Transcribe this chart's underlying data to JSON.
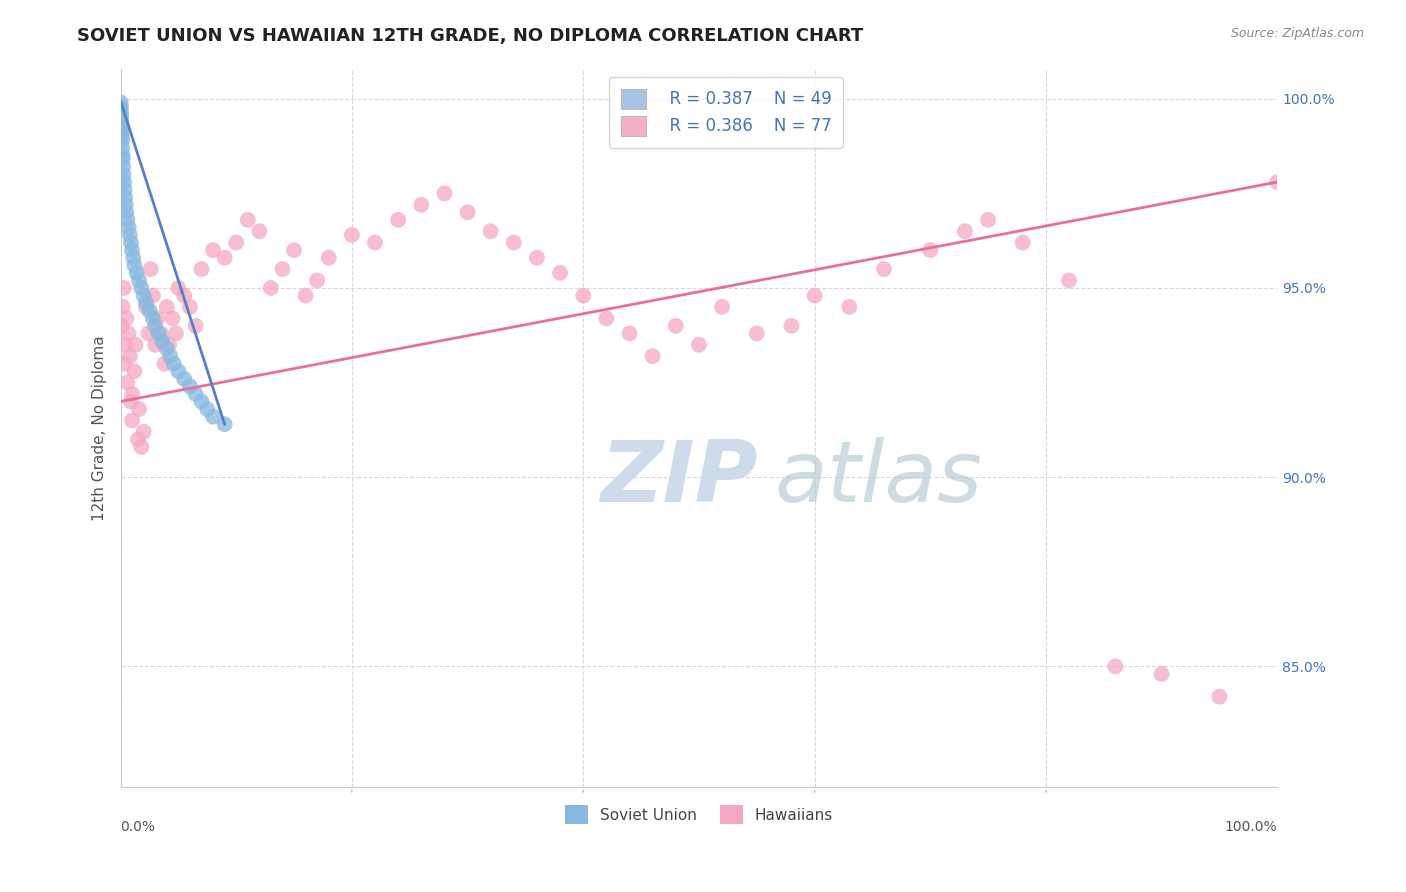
{
  "title": "SOVIET UNION VS HAWAIIAN 12TH GRADE, NO DIPLOMA CORRELATION CHART",
  "source_text": "Source: ZipAtlas.com",
  "ylabel": "12th Grade, No Diploma",
  "legend_r1": "R = 0.387",
  "legend_n1": "N = 49",
  "legend_r2": "R = 0.386",
  "legend_n2": "N = 77",
  "legend_color1": "#aac4e8",
  "legend_color2": "#f4b0c8",
  "dot_color_blue": "#88b8e0",
  "dot_color_pink": "#f4a8c0",
  "line_color_blue": "#5580c8",
  "line_color_pink": "#e87098",
  "watermark_zip_color": "#c8d8e8",
  "watermark_atlas_color": "#b8ccd8",
  "background_color": "#ffffff",
  "grid_color": "#d8d8d8",
  "text_color_blue": "#4472c4",
  "title_fontsize": 13,
  "axis_label_fontsize": 11,
  "tick_fontsize": 10,
  "y_ticks": [
    0.85,
    0.9,
    0.95,
    1.0
  ],
  "xlim": [
    0.0,
    1.0
  ],
  "ylim": [
    0.818,
    1.008
  ],
  "blue_scatter_x": [
    0.0002,
    0.0003,
    0.0004,
    0.0005,
    0.0006,
    0.0007,
    0.0008,
    0.0009,
    0.001,
    0.0012,
    0.0014,
    0.0016,
    0.0018,
    0.002,
    0.0022,
    0.0025,
    0.003,
    0.0035,
    0.004,
    0.0045,
    0.005,
    0.006,
    0.007,
    0.008,
    0.009,
    0.01,
    0.011,
    0.012,
    0.014,
    0.016,
    0.018,
    0.02,
    0.022,
    0.025,
    0.028,
    0.03,
    0.033,
    0.036,
    0.04,
    0.043,
    0.046,
    0.05,
    0.055,
    0.06,
    0.065,
    0.07,
    0.075,
    0.08,
    0.09
  ],
  "blue_scatter_y": [
    0.999,
    0.998,
    0.997,
    0.996,
    0.995,
    0.994,
    0.993,
    0.992,
    0.991,
    0.99,
    0.989,
    0.987,
    0.985,
    0.984,
    0.982,
    0.98,
    0.978,
    0.976,
    0.974,
    0.972,
    0.97,
    0.968,
    0.966,
    0.964,
    0.962,
    0.96,
    0.958,
    0.956,
    0.954,
    0.952,
    0.95,
    0.948,
    0.946,
    0.944,
    0.942,
    0.94,
    0.938,
    0.936,
    0.934,
    0.932,
    0.93,
    0.928,
    0.926,
    0.924,
    0.922,
    0.92,
    0.918,
    0.916,
    0.914
  ],
  "pink_scatter_x": [
    0.001,
    0.002,
    0.003,
    0.003,
    0.004,
    0.005,
    0.006,
    0.007,
    0.008,
    0.009,
    0.01,
    0.01,
    0.012,
    0.013,
    0.015,
    0.016,
    0.018,
    0.02,
    0.022,
    0.024,
    0.026,
    0.028,
    0.03,
    0.032,
    0.035,
    0.038,
    0.04,
    0.042,
    0.045,
    0.048,
    0.05,
    0.055,
    0.06,
    0.065,
    0.07,
    0.08,
    0.09,
    0.1,
    0.11,
    0.12,
    0.13,
    0.14,
    0.15,
    0.16,
    0.17,
    0.18,
    0.2,
    0.22,
    0.24,
    0.26,
    0.28,
    0.3,
    0.32,
    0.34,
    0.36,
    0.38,
    0.4,
    0.42,
    0.44,
    0.46,
    0.48,
    0.5,
    0.52,
    0.55,
    0.58,
    0.6,
    0.63,
    0.66,
    0.7,
    0.73,
    0.75,
    0.78,
    0.82,
    0.86,
    0.9,
    0.95,
    1.0
  ],
  "pink_scatter_y": [
    0.94,
    0.945,
    0.95,
    0.93,
    0.935,
    0.942,
    0.925,
    0.938,
    0.932,
    0.92,
    0.915,
    0.922,
    0.928,
    0.935,
    0.91,
    0.918,
    0.908,
    0.912,
    0.945,
    0.938,
    0.955,
    0.948,
    0.935,
    0.942,
    0.938,
    0.93,
    0.945,
    0.935,
    0.942,
    0.938,
    0.95,
    0.948,
    0.945,
    0.94,
    0.955,
    0.96,
    0.958,
    0.962,
    0.968,
    0.965,
    0.95,
    0.955,
    0.96,
    0.948,
    0.952,
    0.958,
    0.964,
    0.962,
    0.968,
    0.972,
    0.975,
    0.97,
    0.965,
    0.962,
    0.958,
    0.954,
    0.948,
    0.942,
    0.938,
    0.932,
    0.94,
    0.935,
    0.945,
    0.938,
    0.94,
    0.948,
    0.945,
    0.955,
    0.96,
    0.965,
    0.968,
    0.962,
    0.952,
    0.85,
    0.848,
    0.842,
    0.978
  ],
  "pink_line_x": [
    0.0,
    1.0
  ],
  "pink_line_y": [
    0.92,
    0.978
  ],
  "blue_line_x": [
    0.0005,
    0.09
  ],
  "blue_line_y": [
    0.999,
    0.914
  ]
}
